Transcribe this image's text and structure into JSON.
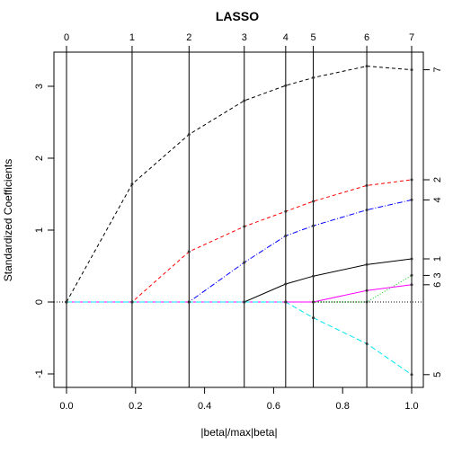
{
  "chart_data": {
    "type": "line",
    "title": "LASSO",
    "xlabel": "|beta|/max|beta|",
    "ylabel": "Standardized Coefficients",
    "xlim": [
      0,
      1
    ],
    "ylim": [
      -1.15,
      3.45
    ],
    "x_ticks": [
      "0.0",
      "0.2",
      "0.4",
      "0.6",
      "0.8",
      "1.0"
    ],
    "y_ticks": [
      "-1",
      "0",
      "1",
      "2",
      "3"
    ],
    "steps": [
      0,
      0.19,
      0.355,
      0.515,
      0.635,
      0.715,
      0.87,
      1.0
    ],
    "step_labels": [
      "0",
      "1",
      "2",
      "3",
      "4",
      "5",
      "6",
      "7"
    ],
    "series": [
      {
        "label": "7",
        "color": "#000000",
        "dash": "4,3",
        "values": [
          0,
          1.64,
          2.33,
          2.8,
          3.01,
          3.12,
          3.28,
          3.23
        ]
      },
      {
        "label": "2",
        "color": "#ff0000",
        "dash": "4,3",
        "values": [
          0,
          0,
          0.7,
          1.05,
          1.26,
          1.4,
          1.62,
          1.7
        ]
      },
      {
        "label": "4",
        "color": "#0000ff",
        "dash": "6,2,1,2",
        "values": [
          0,
          0,
          0,
          0.55,
          0.92,
          1.06,
          1.28,
          1.42
        ]
      },
      {
        "label": "1",
        "color": "#000000",
        "dash": "",
        "values": [
          0,
          0,
          0,
          0,
          0.25,
          0.36,
          0.52,
          0.6
        ]
      },
      {
        "label": "3",
        "color": "#00cd00",
        "dash": "1,2",
        "values": [
          0,
          0,
          0,
          0,
          0,
          0,
          0,
          0.37
        ]
      },
      {
        "label": "6",
        "color": "#ff00ff",
        "dash": "",
        "values": [
          0,
          0,
          0,
          0,
          0,
          0,
          0.16,
          0.24
        ]
      },
      {
        "label": "5",
        "color": "#00e5ee",
        "dash": "6,3",
        "values": [
          0,
          0,
          0,
          0,
          0,
          -0.22,
          -0.58,
          -1.01
        ]
      }
    ]
  }
}
